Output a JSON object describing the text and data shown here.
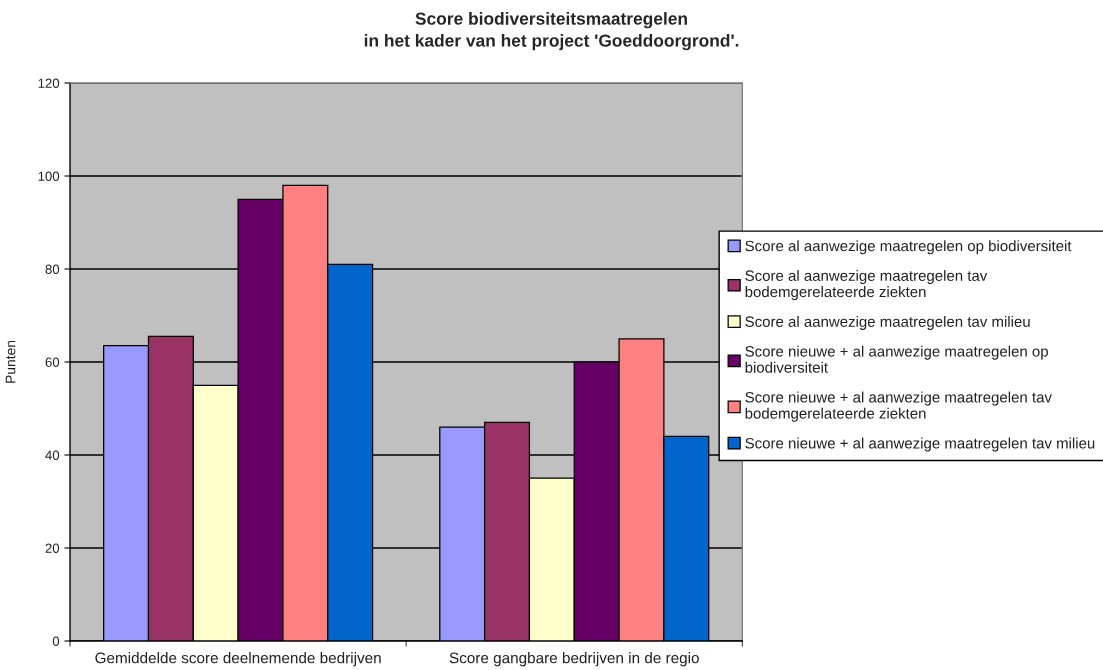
{
  "chart_data": {
    "type": "bar",
    "title": "Score biodiversiteitsmaatregelen\nin het kader van het project 'Goeddoorgrond'.",
    "ylabel": "Punten",
    "categories": [
      "Gemiddelde score deelnemende bedrijven",
      "Score gangbare bedrijven in de regio"
    ],
    "series": [
      {
        "name": "Score al aanwezige maatregelen op biodiversiteit",
        "color": "#9999ff",
        "values": [
          63.5,
          46
        ]
      },
      {
        "name": "Score al aanwezige maatregelen tav\nbodemgerelateerde ziekten",
        "color": "#993366",
        "values": [
          65.5,
          47
        ]
      },
      {
        "name": "Score al aanwezige maatregelen tav milieu",
        "color": "#ffffcc",
        "values": [
          55,
          35
        ]
      },
      {
        "name": "Score nieuwe + al aanwezige maatregelen op\nbiodiversiteit",
        "color": "#660066",
        "values": [
          95,
          60
        ]
      },
      {
        "name": "Score nieuwe + al aanwezige maatregelen tav\nbodemgerelateerde ziekten",
        "color": "#ff8080",
        "values": [
          98,
          65
        ]
      },
      {
        "name": "Score nieuwe + al aanwezige maatregelen tav milieu",
        "color": "#0066cc",
        "values": [
          81,
          44
        ]
      }
    ],
    "ylim": [
      0,
      120
    ],
    "yticks": [
      0,
      20,
      40,
      60,
      80,
      100,
      120
    ],
    "grid": "y",
    "legend": "right"
  }
}
